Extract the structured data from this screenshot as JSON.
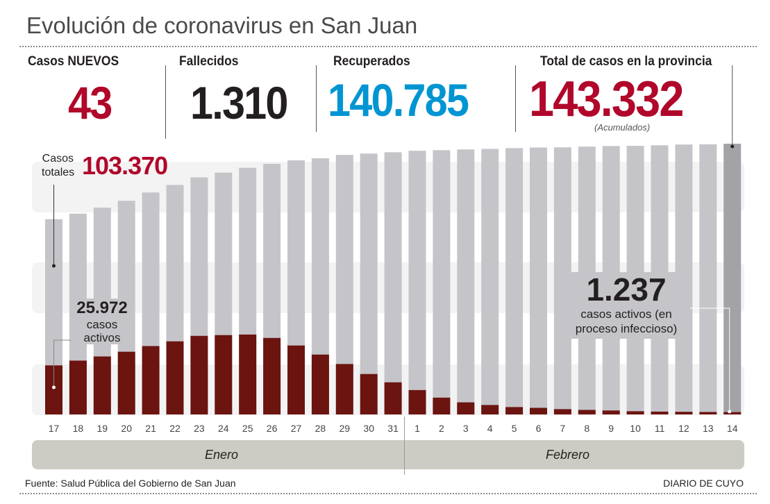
{
  "title": "Evolución de coronavirus en San Juan",
  "stats": [
    {
      "label": "Casos NUEVOS",
      "value": "43",
      "color": "#b0072a"
    },
    {
      "label": "Fallecidos",
      "value": "1.310",
      "color": "#231f20"
    },
    {
      "label": "Recuperados",
      "value": "140.785",
      "color": "#0095d2"
    },
    {
      "label": "Total de casos en la provincia",
      "value": "143.332",
      "color": "#b0072a",
      "note": "(Acumulados)"
    }
  ],
  "annotations": {
    "totales_label_1": "Casos",
    "totales_label_2": "totales",
    "totales_value": "103.370",
    "activos_start_value": "25.972",
    "activos_start_l1": "casos",
    "activos_start_l2": "activos",
    "activos_end_value": "1.237",
    "activos_end_l1": "casos activos (en",
    "activos_end_l2": "proceso infeccioso)"
  },
  "months": [
    "Enero",
    "Febrero"
  ],
  "footer": {
    "source": "Fuente: Salud Pública del Gobierno de San Juan",
    "brand": "DIARIO DE CUYO"
  },
  "chart_data": {
    "type": "bar",
    "title": "Evolución de coronavirus en San Juan",
    "categories": [
      "17",
      "18",
      "19",
      "20",
      "21",
      "22",
      "23",
      "24",
      "25",
      "26",
      "27",
      "28",
      "29",
      "30",
      "31",
      "1",
      "2",
      "3",
      "4",
      "5",
      "6",
      "7",
      "8",
      "9",
      "10",
      "11",
      "12",
      "13",
      "14"
    ],
    "month_groups": [
      {
        "name": "Enero",
        "from": "17",
        "to": "31"
      },
      {
        "name": "Febrero",
        "from": "1",
        "to": "14"
      }
    ],
    "series": [
      {
        "name": "Casos totales",
        "color": "#c5c4c9",
        "values": [
          103370,
          106300,
          109500,
          113100,
          117500,
          121500,
          125500,
          128000,
          130600,
          132700,
          134500,
          135600,
          137400,
          138100,
          138800,
          139600,
          139900,
          140300,
          140600,
          141000,
          141300,
          141400,
          141800,
          142100,
          142200,
          142500,
          142900,
          143000,
          143332
        ]
      },
      {
        "name": "Casos activos",
        "color": "#6b1410",
        "values": [
          25972,
          28500,
          30700,
          33200,
          36200,
          38700,
          41600,
          42000,
          42300,
          40500,
          36500,
          31700,
          26700,
          21400,
          17000,
          12900,
          8900,
          6400,
          5000,
          3900,
          3500,
          2800,
          2400,
          2100,
          1700,
          1500,
          1400,
          1300,
          1237
        ]
      }
    ],
    "xlabel": "",
    "ylabel": "",
    "ylim": [
      0,
      143332
    ],
    "grid": false,
    "legend": "none"
  }
}
